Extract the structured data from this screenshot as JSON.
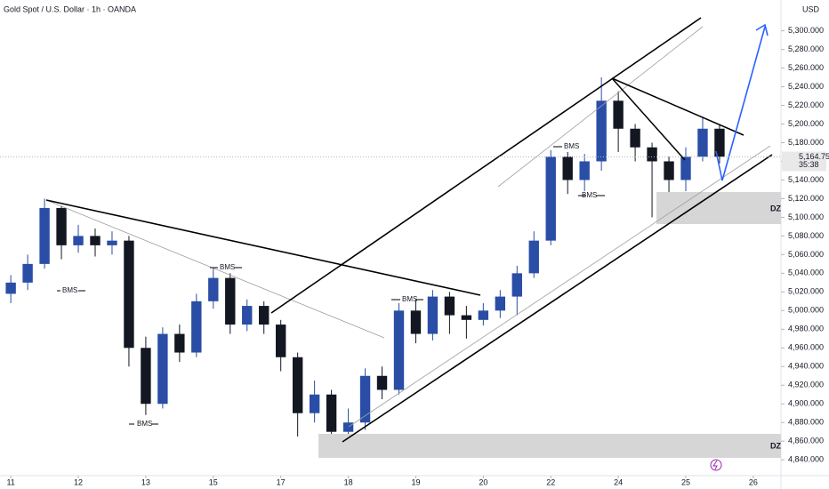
{
  "chart_data": {
    "type": "candlestick",
    "title": "Gold Spot / U.S. Dollar · 1h · OANDA",
    "currency": "USD",
    "x": [
      0,
      0.25,
      0.5,
      0.75,
      1,
      1.25,
      1.5,
      1.75,
      2,
      2.25,
      2.5,
      2.75,
      3,
      3.25,
      3.5,
      3.75,
      4,
      4.25,
      4.5,
      4.75,
      5,
      5.25,
      5.5,
      5.75,
      6,
      6.25,
      6.5,
      6.75,
      7,
      7.25,
      7.5,
      7.75,
      8,
      8.25,
      8.5,
      8.75,
      9,
      9.25,
      9.5,
      9.75,
      10,
      10.25,
      10.5
    ],
    "open": [
      5018,
      5030,
      5050,
      5110,
      5070,
      5080,
      5070,
      5075,
      4960,
      4900,
      4975,
      4955,
      5010,
      5035,
      4985,
      5005,
      4985,
      4950,
      4890,
      4910,
      4870,
      4880,
      4930,
      4915,
      5000,
      4975,
      5015,
      4995,
      4990,
      5000,
      5015,
      5040,
      5075,
      5165,
      5140,
      5160,
      5225,
      5195,
      5175,
      5160,
      5140,
      5165,
      5195
    ],
    "high": [
      5038,
      5060,
      5120,
      5112,
      5092,
      5088,
      5085,
      5080,
      4972,
      4982,
      4985,
      5018,
      5045,
      5040,
      5012,
      5010,
      4990,
      4955,
      4925,
      4915,
      4895,
      4938,
      4940,
      5008,
      5012,
      5022,
      5020,
      5005,
      5008,
      5022,
      5048,
      5085,
      5172,
      5170,
      5168,
      5250,
      5235,
      5200,
      5180,
      5165,
      5175,
      5208,
      5200
    ],
    "low": [
      5008,
      5022,
      5045,
      5055,
      5062,
      5058,
      5060,
      4940,
      4888,
      4895,
      4945,
      4950,
      5002,
      4975,
      4978,
      4975,
      4935,
      4865,
      4880,
      4850,
      4858,
      4872,
      4905,
      4910,
      4965,
      4968,
      4975,
      4970,
      4984,
      4992,
      4995,
      5035,
      5070,
      5125,
      5128,
      5150,
      5170,
      5160,
      5100,
      5120,
      5128,
      5160,
      5158
    ],
    "close": [
      5030,
      5050,
      5110,
      5070,
      5080,
      5070,
      5075,
      4960,
      4900,
      4975,
      4955,
      5010,
      5035,
      4985,
      5005,
      4985,
      4950,
      4890,
      4910,
      4870,
      4880,
      4930,
      4915,
      5000,
      4975,
      5015,
      4995,
      4990,
      5000,
      5015,
      5040,
      5075,
      5165,
      5140,
      5160,
      5225,
      5195,
      5175,
      5160,
      5140,
      5165,
      5195,
      5165
    ],
    "up_color": "#2a4da6",
    "down_color": "#131722",
    "xlim": [
      -0.16,
      11.41
    ],
    "xticks": [
      {
        "value": 0,
        "label": "11"
      },
      {
        "value": 1,
        "label": "12"
      },
      {
        "value": 2,
        "label": "13"
      },
      {
        "value": 3,
        "label": "15"
      },
      {
        "value": 4,
        "label": "17"
      },
      {
        "value": 5,
        "label": "18"
      },
      {
        "value": 6,
        "label": "19"
      },
      {
        "value": 7,
        "label": "20"
      },
      {
        "value": 8,
        "label": "22"
      },
      {
        "value": 9,
        "label": "24"
      },
      {
        "value": 10,
        "label": "25"
      },
      {
        "value": 11,
        "label": "26"
      }
    ],
    "ylim": [
      4823,
      5333
    ],
    "yticks": [
      {
        "value": 4840,
        "label": "4,840.000"
      },
      {
        "value": 4860,
        "label": "4,860.000"
      },
      {
        "value": 4880,
        "label": "4,880.000"
      },
      {
        "value": 4900,
        "label": "4,900.000"
      },
      {
        "value": 4920,
        "label": "4,920.000"
      },
      {
        "value": 4940,
        "label": "4,940.000"
      },
      {
        "value": 4960,
        "label": "4,960.000"
      },
      {
        "value": 4980,
        "label": "4,980.000"
      },
      {
        "value": 5000,
        "label": "5,000.000"
      },
      {
        "value": 5020,
        "label": "5,020.000"
      },
      {
        "value": 5040,
        "label": "5,040.000"
      },
      {
        "value": 5060,
        "label": "5,060.000"
      },
      {
        "value": 5080,
        "label": "5,080.000"
      },
      {
        "value": 5100,
        "label": "5,100.000"
      },
      {
        "value": 5120,
        "label": "5,120.000"
      },
      {
        "value": 5140,
        "label": "5,140.000"
      },
      {
        "value": 5160,
        "label": "5,160.000"
      },
      {
        "value": 5180,
        "label": "5,180.000"
      },
      {
        "value": 5200,
        "label": "5,200.000"
      },
      {
        "value": 5220,
        "label": "5,220.000"
      },
      {
        "value": 5240,
        "label": "5,240.000"
      },
      {
        "value": 5260,
        "label": "5,260.000"
      },
      {
        "value": 5280,
        "label": "5,280.000"
      },
      {
        "value": 5300,
        "label": "5,300.000"
      }
    ],
    "last_price": {
      "value": 5164.755,
      "label": "5,164.755"
    },
    "countdown": "35:38",
    "annotations": [
      "BMS",
      "BMS",
      "BMS",
      "BMS",
      "BMS",
      "BMS"
    ],
    "zones": [
      "DZ",
      "DZ"
    ]
  }
}
